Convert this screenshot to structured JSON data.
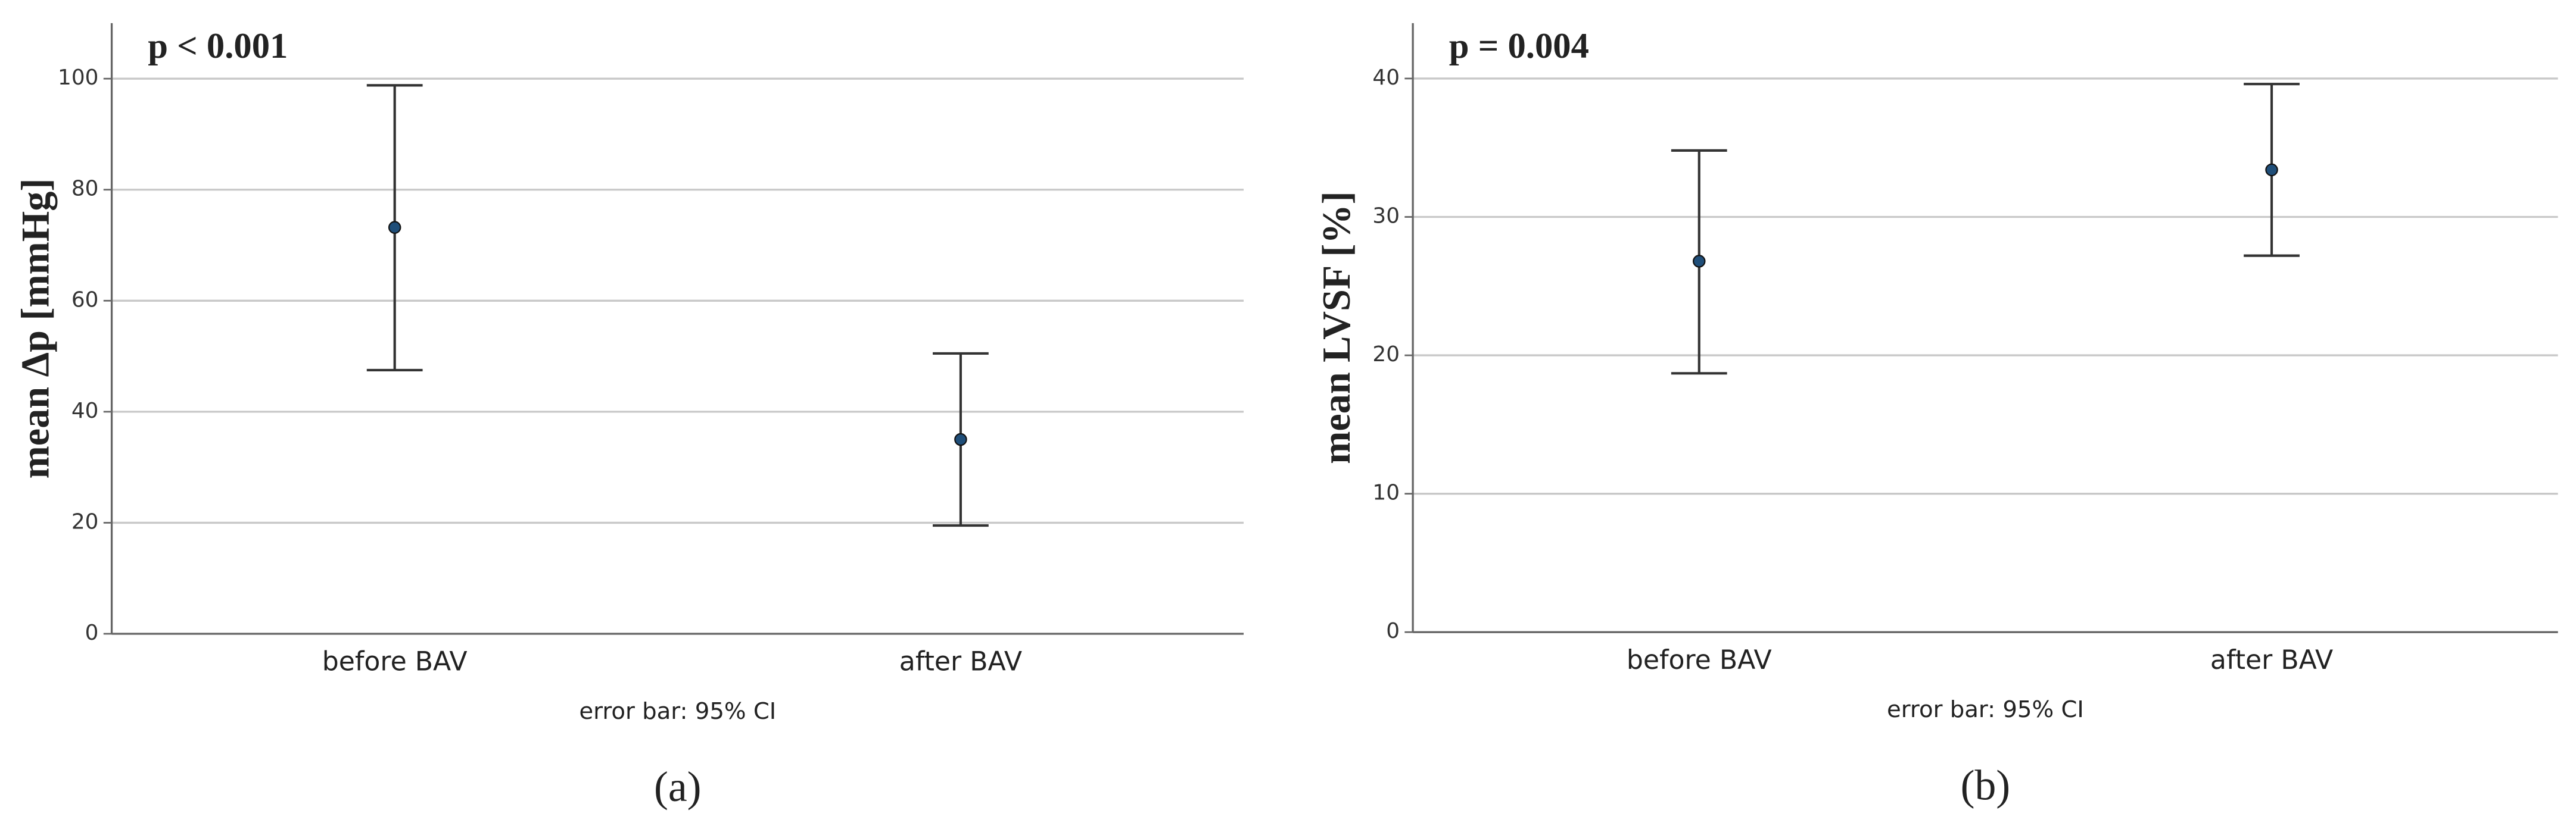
{
  "chart_data": [
    {
      "type": "errorbar",
      "annotation": "p < 0.001",
      "ylabel": "mean Δp [mmHg]",
      "note": "error bar: 95% CI",
      "label": "(a)",
      "categories": [
        "before BAV",
        "after BAV"
      ],
      "series": [
        {
          "color": "#1f4e79",
          "values": [
            73.2,
            35.0
          ],
          "lower": [
            47.5,
            19.5
          ],
          "upper": [
            98.8,
            50.5
          ]
        }
      ],
      "ylim": [
        0,
        110
      ],
      "yticks": [
        0,
        20,
        40,
        60,
        80,
        100
      ],
      "grid": true
    },
    {
      "type": "errorbar",
      "annotation": "p = 0.004",
      "ylabel": "mean LVSF [%]",
      "note": "error bar: 95% CI",
      "label": "(b)",
      "categories": [
        "before BAV",
        "after BAV"
      ],
      "series": [
        {
          "color": "#1f4e79",
          "values": [
            26.8,
            33.4
          ],
          "lower": [
            18.7,
            27.2
          ],
          "upper": [
            34.8,
            39.6
          ]
        }
      ],
      "ylim": [
        0,
        44
      ],
      "yticks": [
        0,
        10,
        20,
        30,
        40
      ],
      "grid": true
    }
  ]
}
